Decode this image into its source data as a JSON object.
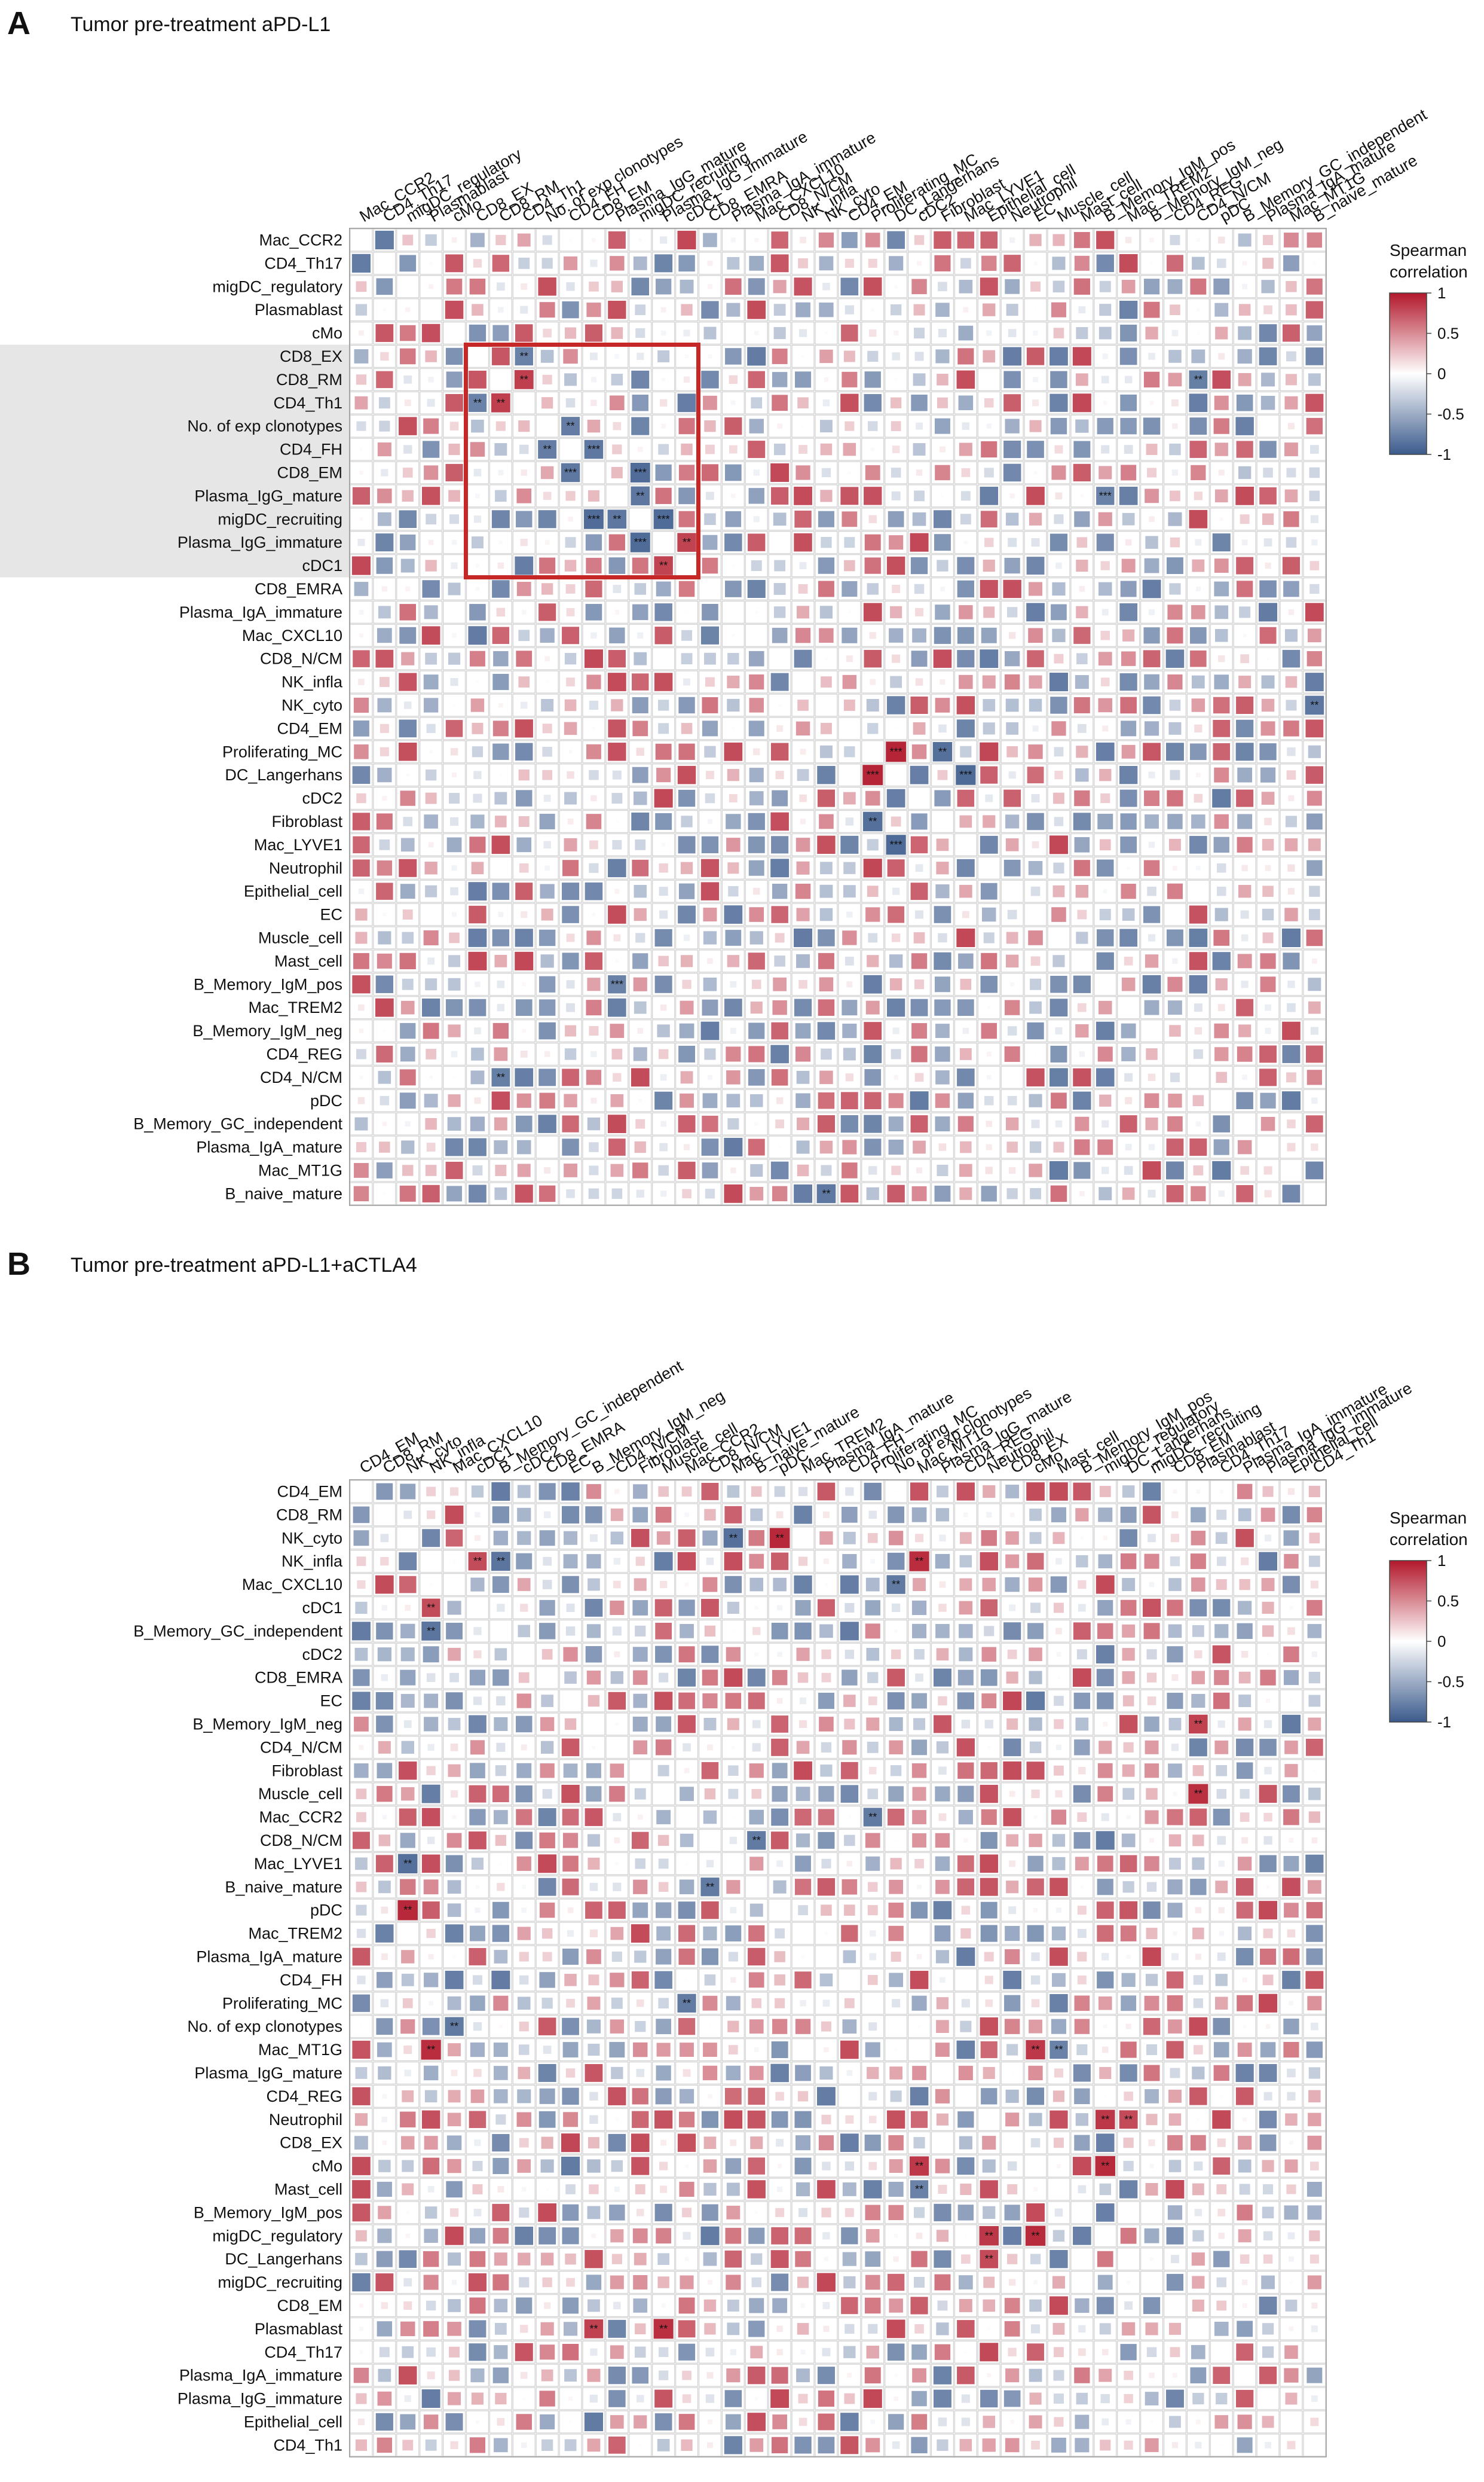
{
  "panels": [
    {
      "letter": "A",
      "title": "Tumor pre-treatment aPD-L1",
      "colorbar": {
        "title_line1": "Spearman",
        "title_line2": "correlation",
        "ticks": [
          "1",
          "0.5",
          "0",
          "-0.5",
          "-1"
        ]
      },
      "legend_colors": {
        "positive": "#b2182b",
        "neutral": "#ffffff",
        "negative": "#3b5a8c"
      },
      "highlight_box": {
        "from_label": "CD8_EX",
        "to_label": "cDC1",
        "color": "#c62828"
      },
      "chart_data": {
        "type": "heatmap",
        "row_labels": [
          "Mac_CCR2",
          "CD4_Th17",
          "migDC_regulatory",
          "Plasmablast",
          "cMo",
          "CD8_EX",
          "CD8_RM",
          "CD4_Th1",
          "No. of exp clonotypes",
          "CD4_FH",
          "CD8_EM",
          "Plasma_IgG_mature",
          "migDC_recruiting",
          "Plasma_IgG_immature",
          "cDC1",
          "CD8_EMRA",
          "Plasma_IgA_immature",
          "Mac_CXCL10",
          "CD8_N/CM",
          "NK_infla",
          "NK_cyto",
          "CD4_EM",
          "Proliferating_MC",
          "DC_Langerhans",
          "cDC2",
          "Fibroblast",
          "Mac_LYVE1",
          "Neutrophil",
          "Epithelial_cell",
          "EC",
          "Muscle_cell",
          "Mast_cell",
          "B_Memory_IgM_pos",
          "Mac_TREM2",
          "B_Memory_IgM_neg",
          "CD4_REG",
          "CD4_N/CM",
          "pDC",
          "B_Memory_GC_independent",
          "Plasma_IgA_mature",
          "Mac_MT1G",
          "B_naive_mature"
        ],
        "col_labels": [
          "Mac_CCR2",
          "CD4_Th17",
          "migDC_regulatory",
          "Plasmablast",
          "cMo",
          "CD8_EX",
          "CD8_RM",
          "CD4_Th1",
          "No. of exp clonotypes",
          "CD4_FH",
          "CD8_EM",
          "Plasma_IgG_mature",
          "migDC_recruiting",
          "Plasma_IgG_immature",
          "cDC1",
          "CD8_EMRA",
          "Plasma_IgA_immature",
          "Mac_CXCL10",
          "CD8_N/CM",
          "NK_infla",
          "NK_cyto",
          "CD4_EM",
          "Proliferating_MC",
          "DC_Langerhans",
          "cDC2",
          "Fibroblast",
          "Mac_LYVE1",
          "Epithelial_cell",
          "Neutrophil",
          "EC",
          "Muscle_cell",
          "Mast_cell",
          "B_Memory_IgM_pos",
          "Mac_TREM2",
          "B_Memory_IgM_neg",
          "CD4_REG",
          "CD4_N/CM",
          "pDC",
          "B_Memory_GC_independent",
          "Plasma_IgA_mature",
          "Mac_MT1G",
          "B_naive_mature"
        ],
        "value_range": [
          -1,
          1
        ],
        "cell_encoding": "square size and color proportional to Spearman correlation",
        "significant_cells": [
          {
            "row": "CD8_EX",
            "col": "CD4_Th1",
            "label": "*"
          },
          {
            "row": "CD8_RM",
            "col": "CD4_Th1",
            "label": "**"
          },
          {
            "row": "CD4_Th1",
            "col": "CD8_EX",
            "label": "**"
          },
          {
            "row": "No. of exp clonotypes",
            "col": "CD4_FH",
            "label": "**"
          },
          {
            "row": "CD4_FH",
            "col": "CD8_EM",
            "label": "***"
          },
          {
            "row": "Plasma_IgG_mature",
            "col": "migDC_recruiting",
            "label": "**"
          },
          {
            "row": "migDC_recruiting",
            "col": "CD8_EM",
            "label": "***"
          },
          {
            "row": "Plasma_IgG_immature",
            "col": "migDC_recruiting",
            "label": "***"
          },
          {
            "row": "cDC1",
            "col": "Plasma_IgG_immature",
            "label": "**"
          },
          {
            "row": "Proliferating_MC",
            "col": "DC_Langerhans",
            "label": "***"
          },
          {
            "row": "Fibroblast",
            "col": "Proliferating_MC",
            "label": "**"
          },
          {
            "row": "Mac_LYVE1",
            "col": "DC_Langerhans",
            "label": "***"
          },
          {
            "row": "B_Memory_IgM_pos",
            "col": "Plasma_IgG_mature",
            "label": "***"
          },
          {
            "row": "CD4_N/CM",
            "col": "CD8_RM",
            "label": "**"
          },
          {
            "row": "B_naive_mature",
            "col": "NK_cyto",
            "label": "**"
          }
        ]
      }
    },
    {
      "letter": "B",
      "title": "Tumor pre-treatment aPD-L1+aCTLA4",
      "colorbar": {
        "title_line1": "Spearman",
        "title_line2": "correlation",
        "ticks": [
          "1",
          "0.5",
          "0",
          "-0.5",
          "-1"
        ]
      },
      "legend_colors": {
        "positive": "#b2182b",
        "neutral": "#ffffff",
        "negative": "#3b5a8c"
      },
      "chart_data": {
        "type": "heatmap",
        "row_labels": [
          "CD4_EM",
          "CD8_RM",
          "NK_cyto",
          "NK_infla",
          "Mac_CXCL10",
          "cDC1",
          "B_Memory_GC_independent",
          "cDC2",
          "CD8_EMRA",
          "EC",
          "B_Memory_IgM_neg",
          "CD4_N/CM",
          "Fibroblast",
          "Muscle_cell",
          "Mac_CCR2",
          "CD8_N/CM",
          "Mac_LYVE1",
          "B_naive_mature",
          "pDC",
          "Mac_TREM2",
          "Plasma_IgA_mature",
          "CD4_FH",
          "Proliferating_MC",
          "No. of exp clonotypes",
          "Mac_MT1G",
          "Plasma_IgG_mature",
          "CD4_REG",
          "Neutrophil",
          "CD8_EX",
          "cMo",
          "Mast_cell",
          "B_Memory_IgM_pos",
          "migDC_regulatory",
          "DC_Langerhans",
          "migDC_recruiting",
          "CD8_EM",
          "Plasmablast",
          "CD4_Th17",
          "Plasma_IgA_immature",
          "Plasma_IgG_immature",
          "Epithelial_cell",
          "CD4_Th1"
        ],
        "col_labels": [
          "CD4_EM",
          "CD8_RM",
          "NK_cyto",
          "NK_infla",
          "Mac_CXCL10",
          "cDC1",
          "B_Memory_GC_independent",
          "cDC2",
          "CD8_EMRA",
          "EC",
          "B_Memory_IgM_neg",
          "CD4_N/CM",
          "Fibroblast",
          "Muscle_cell",
          "Mac_CCR2",
          "CD8_N/CM",
          "Mac_LYVE1",
          "B_naive_mature",
          "pDC",
          "Mac_TREM2",
          "Plasma_IgA_mature",
          "CD4_FH",
          "Proliferating_MC",
          "No. of exp clonotypes",
          "Mac_MT1G",
          "Plasma_IgG_mature",
          "CD4_REG",
          "Neutrophil",
          "CD8_EX",
          "cMo",
          "Mast_cell",
          "B_Memory_IgM_pos",
          "migDC_regulatory",
          "DC_Langerhans",
          "migDC_recruiting",
          "CD8_EM",
          "Plasmablast",
          "CD4_Th17",
          "Plasma_IgA_immature",
          "Plasma_IgG_immature",
          "Epithelial_cell",
          "CD4_Th1"
        ],
        "value_range": [
          -1,
          1
        ],
        "cell_encoding": "square size and color proportional to Spearman correlation",
        "significant_cells": [
          {
            "row": "NK_cyto",
            "col": "Mac_LYVE1",
            "label": "**"
          },
          {
            "row": "NK_infla",
            "col": "B_Memory_GC_independent",
            "label": "**"
          },
          {
            "row": "Mac_CXCL10",
            "col": "No. of exp clonotypes",
            "label": "**"
          },
          {
            "row": "cDC1",
            "col": "NK_infla",
            "label": "**"
          },
          {
            "row": "B_Memory_GC_independent",
            "col": "NK_infla",
            "label": "**"
          },
          {
            "row": "B_Memory_IgM_neg",
            "col": "Plasmablast",
            "label": "**"
          },
          {
            "row": "Mac_CCR2",
            "col": "Proliferating_MC",
            "label": "**"
          },
          {
            "row": "CD8_N/CM",
            "col": "B_naive_mature",
            "label": "**"
          },
          {
            "row": "pDC",
            "col": "NK_cyto",
            "label": "**"
          },
          {
            "row": "Mac_MT1G",
            "col": "NK_infla",
            "label": "**"
          },
          {
            "row": "Mac_MT1G",
            "col": "Mast_cell",
            "label": "**"
          },
          {
            "row": "Neutrophil",
            "col": "migDC_regulatory",
            "label": "**"
          },
          {
            "row": "cMo",
            "col": "Mac_MT1G",
            "label": "**"
          },
          {
            "row": "migDC_regulatory",
            "col": "cMo",
            "label": "**"
          },
          {
            "row": "DC_Langerhans",
            "col": "Neutrophil",
            "label": "**"
          },
          {
            "row": "Plasmablast",
            "col": "Muscle_cell",
            "label": "**"
          }
        ]
      }
    }
  ]
}
